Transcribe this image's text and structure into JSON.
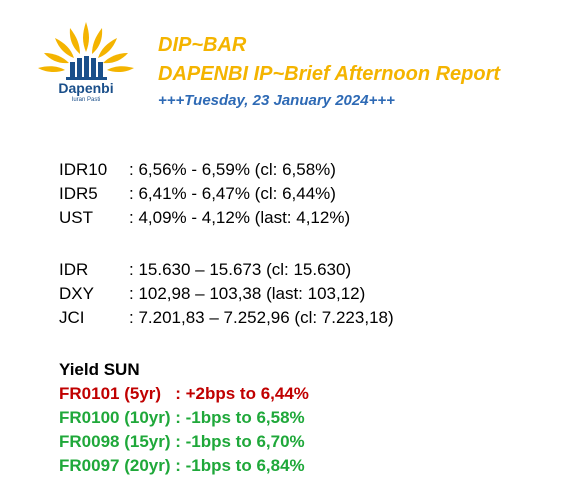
{
  "logo": {
    "wordmark": "Dapenbi",
    "tagline": "Iuran Pasti",
    "sun_color": "#f4b400",
    "building_color": "#1a4f8a"
  },
  "header": {
    "title": "DIP~BAR",
    "subtitle": "DAPENBI IP~Brief Afternoon Report",
    "date_line": "+++Tuesday, 23 January 2024+++"
  },
  "bonds": [
    {
      "label": "IDR10",
      "value": ": 6,56% - 6,59% (cl: 6,58%)"
    },
    {
      "label": "IDR5",
      "value": ": 6,41% - 6,47% (cl: 6,44%)"
    },
    {
      "label": "UST",
      "value": ": 4,09% - 4,12% (last: 4,12%)"
    }
  ],
  "markets": [
    {
      "label": "IDR",
      "value": ": 15.630 – 15.673 (cl: 15.630)"
    },
    {
      "label": "DXY",
      "value": ": 102,98 – 103,38 (last: 103,12)"
    },
    {
      "label": "JCI",
      "value": ": 7.201,83 – 7.252,96 (cl: 7.223,18)"
    }
  ],
  "yield_sun": {
    "title": "Yield SUN",
    "items": [
      {
        "text": "FR0101 (5yr)   : +2bps to 6,44%",
        "color": "#c00000"
      },
      {
        "text": "FR0100 (10yr) : -1bps to 6,58%",
        "color": "#1fa83a"
      },
      {
        "text": "FR0098 (15yr) : -1bps to 6,70%",
        "color": "#1fa83a"
      },
      {
        "text": "FR0097 (20yr) : -1bps to 6,84%",
        "color": "#1fa83a"
      }
    ]
  }
}
